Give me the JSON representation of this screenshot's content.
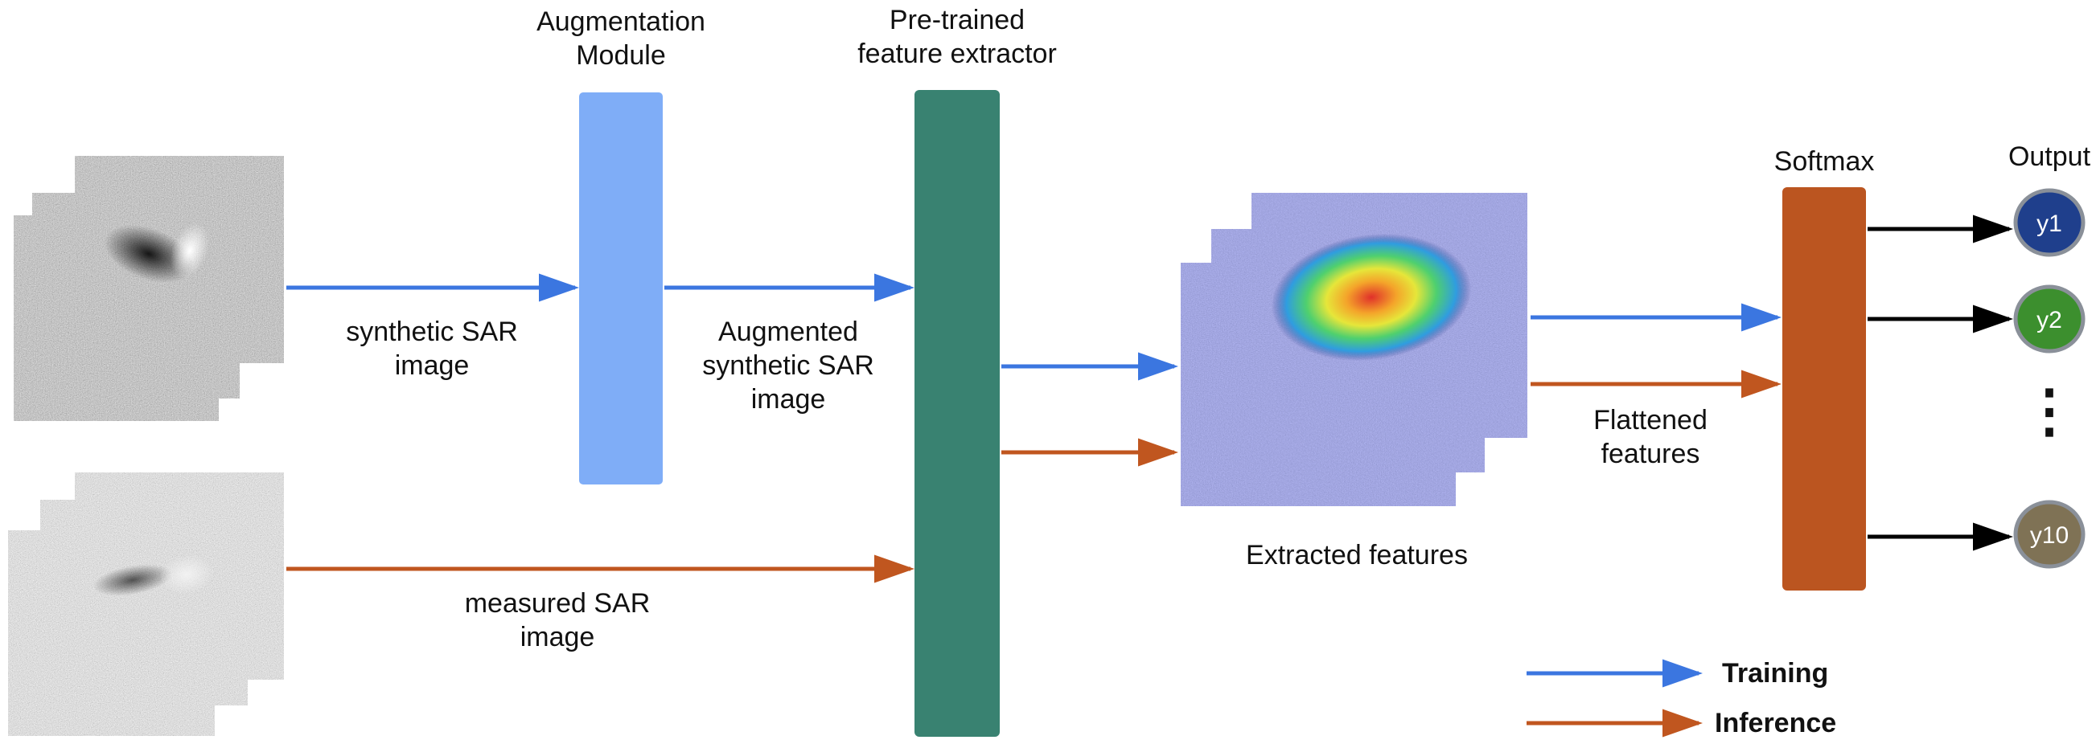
{
  "labels": {
    "augmentation_module": [
      "Augmentation",
      "Module"
    ],
    "feature_extractor": [
      "Pre-trained",
      "feature extractor"
    ],
    "softmax": "Softmax",
    "output": "Output",
    "synthetic_sar_image": [
      "synthetic SAR",
      "image"
    ],
    "augmented_synthetic_sar_image": [
      "Augmented",
      "synthetic SAR",
      "image"
    ],
    "measured_sar_image": [
      "measured SAR",
      "image"
    ],
    "extracted_features": "Extracted features",
    "flattened_features": [
      "Flattened",
      "features"
    ]
  },
  "outputs": [
    {
      "label": "y1",
      "color": "#1f3f8c"
    },
    {
      "label": "y2",
      "color": "#3c8f2e"
    },
    {
      "label": "y10",
      "color": "#7f7255"
    }
  ],
  "ellipsis": "⋮",
  "legend": {
    "training": "Training",
    "inference": "Inference"
  },
  "colors": {
    "training_arrow": "#3b76e0",
    "inference_arrow": "#c0561f",
    "augmentation_block": "#7fadf7",
    "extractor_block": "#398271",
    "softmax_block": "#bb5520",
    "output_arrow": "#000000",
    "heatmap_base": "#3b4591"
  }
}
